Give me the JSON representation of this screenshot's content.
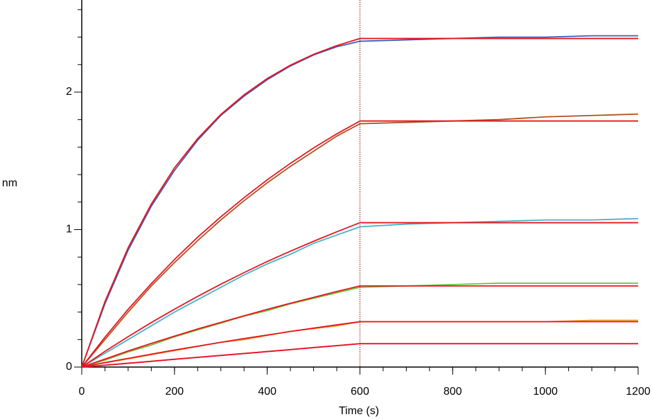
{
  "chart_data": {
    "type": "line",
    "xlabel": "Time (s)",
    "ylabel": "nm",
    "x": [
      0,
      50,
      100,
      150,
      200,
      250,
      300,
      350,
      400,
      450,
      500,
      550,
      600,
      700,
      800,
      900,
      1000,
      1100,
      1200
    ],
    "xlim": [
      0,
      1200
    ],
    "xticks": [
      0,
      200,
      400,
      600,
      800,
      1000,
      1200
    ],
    "xminor_step": 50,
    "ylim": [
      0,
      2.67
    ],
    "yticks": [
      0,
      1,
      2
    ],
    "yminor_step": 0.2,
    "vline_x": 600,
    "vline_color": "#a01010",
    "series": [
      {
        "color": "#3b5fb5",
        "values": [
          0,
          0.46,
          0.85,
          1.17,
          1.43,
          1.65,
          1.83,
          1.97,
          2.09,
          2.19,
          2.27,
          2.33,
          2.37,
          2.38,
          2.39,
          2.4,
          2.4,
          2.41,
          2.41
        ]
      },
      {
        "color": "#b0501e",
        "values": [
          0,
          0.2,
          0.4,
          0.59,
          0.76,
          0.92,
          1.07,
          1.21,
          1.34,
          1.46,
          1.57,
          1.68,
          1.77,
          1.78,
          1.79,
          1.8,
          1.82,
          1.83,
          1.84
        ]
      },
      {
        "color": "#4ab0c8",
        "values": [
          0,
          0.1,
          0.2,
          0.3,
          0.4,
          0.49,
          0.58,
          0.67,
          0.75,
          0.82,
          0.9,
          0.96,
          1.02,
          1.04,
          1.05,
          1.06,
          1.07,
          1.07,
          1.08
        ]
      },
      {
        "color": "#6ac23a",
        "values": [
          0,
          0.05,
          0.11,
          0.16,
          0.22,
          0.27,
          0.32,
          0.37,
          0.41,
          0.46,
          0.5,
          0.54,
          0.58,
          0.59,
          0.6,
          0.61,
          0.61,
          0.61,
          0.61
        ]
      },
      {
        "color": "#f0961e",
        "values": [
          0,
          0.03,
          0.06,
          0.09,
          0.12,
          0.15,
          0.18,
          0.2,
          0.23,
          0.26,
          0.28,
          0.3,
          0.33,
          0.33,
          0.33,
          0.33,
          0.33,
          0.34,
          0.34
        ]
      },
      {
        "color": "#c84ac8",
        "values": [
          0,
          0.013,
          0.027,
          0.041,
          0.056,
          0.07,
          0.084,
          0.098,
          0.112,
          0.126,
          0.141,
          0.155,
          0.17,
          0.17,
          0.17,
          0.17,
          0.17,
          0.17,
          0.17
        ]
      },
      {
        "color": "#e8141e",
        "values": [
          0,
          0.476,
          0.868,
          1.186,
          1.449,
          1.662,
          1.838,
          1.98,
          2.099,
          2.196,
          2.275,
          2.338,
          2.39,
          2.39,
          2.39,
          2.39,
          2.39,
          2.39,
          2.39
        ]
      },
      {
        "color": "#e8141e",
        "values": [
          0,
          0.217,
          0.42,
          0.607,
          0.782,
          0.945,
          1.093,
          1.232,
          1.362,
          1.482,
          1.594,
          1.696,
          1.79,
          1.79,
          1.79,
          1.79,
          1.79,
          1.79,
          1.79
        ]
      },
      {
        "color": "#e8141e",
        "values": [
          0,
          0.114,
          0.221,
          0.324,
          0.421,
          0.514,
          0.603,
          0.687,
          0.768,
          0.843,
          0.915,
          0.984,
          1.05,
          1.05,
          1.05,
          1.05,
          1.05,
          1.05,
          1.05
        ]
      },
      {
        "color": "#e8141e",
        "values": [
          0,
          0.058,
          0.117,
          0.172,
          0.225,
          0.277,
          0.325,
          0.373,
          0.42,
          0.464,
          0.507,
          0.55,
          0.59,
          0.59,
          0.59,
          0.59,
          0.59,
          0.59,
          0.59
        ]
      },
      {
        "color": "#e8141e",
        "values": [
          0,
          0.033,
          0.063,
          0.094,
          0.124,
          0.152,
          0.18,
          0.207,
          0.233,
          0.259,
          0.283,
          0.307,
          0.33,
          0.33,
          0.33,
          0.33,
          0.33,
          0.33,
          0.33
        ]
      },
      {
        "color": "#e8141e",
        "values": [
          0,
          0.014,
          0.028,
          0.042,
          0.057,
          0.071,
          0.085,
          0.099,
          0.113,
          0.127,
          0.142,
          0.156,
          0.17,
          0.17,
          0.17,
          0.17,
          0.17,
          0.17,
          0.17
        ]
      }
    ]
  }
}
